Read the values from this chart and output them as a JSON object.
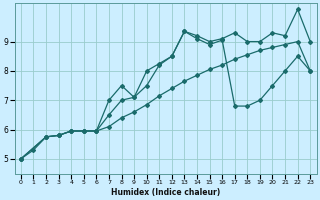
{
  "xlabel": "Humidex (Indice chaleur)",
  "bg_color": "#cceeff",
  "grid_color": "#99cccc",
  "line_color": "#1a6b6b",
  "xlim": [
    -0.5,
    23.5
  ],
  "ylim": [
    4.5,
    10.3
  ],
  "xticks": [
    0,
    1,
    2,
    3,
    4,
    5,
    6,
    7,
    8,
    9,
    10,
    11,
    12,
    13,
    14,
    15,
    16,
    17,
    18,
    19,
    20,
    21,
    22,
    23
  ],
  "yticks": [
    5,
    6,
    7,
    8,
    9
  ],
  "line1_x": [
    0,
    1,
    2,
    3,
    4,
    5,
    6,
    7,
    8,
    9,
    10,
    11,
    12,
    13,
    14,
    15,
    16,
    17,
    18,
    19,
    20,
    21,
    22,
    23
  ],
  "line1_y": [
    5.0,
    5.3,
    5.75,
    5.8,
    5.95,
    5.95,
    5.95,
    6.1,
    6.4,
    6.6,
    6.85,
    7.15,
    7.4,
    7.65,
    7.85,
    8.05,
    8.2,
    8.4,
    8.55,
    8.7,
    8.8,
    8.9,
    9.0,
    8.0
  ],
  "line2_x": [
    0,
    2,
    3,
    4,
    5,
    6,
    7,
    8,
    9,
    10,
    11,
    12,
    13,
    14,
    15,
    16,
    17,
    18,
    19,
    20,
    21,
    22,
    23
  ],
  "line2_y": [
    5.0,
    5.75,
    5.8,
    5.95,
    5.95,
    5.95,
    6.5,
    7.0,
    7.1,
    7.5,
    8.2,
    8.5,
    9.35,
    9.2,
    9.0,
    9.1,
    9.3,
    9.0,
    9.0,
    9.3,
    9.2,
    10.1,
    9.0
  ],
  "line3_x": [
    0,
    2,
    3,
    4,
    5,
    6,
    7,
    8,
    9,
    10,
    11,
    12,
    13,
    14,
    15,
    16,
    17,
    18,
    19,
    20,
    21,
    22,
    23
  ],
  "line3_y": [
    5.0,
    5.75,
    5.8,
    5.95,
    5.95,
    5.95,
    7.0,
    7.5,
    7.1,
    8.0,
    8.25,
    8.5,
    9.35,
    9.1,
    8.9,
    9.05,
    6.8,
    6.8,
    7.0,
    7.5,
    8.0,
    8.5,
    8.0
  ]
}
